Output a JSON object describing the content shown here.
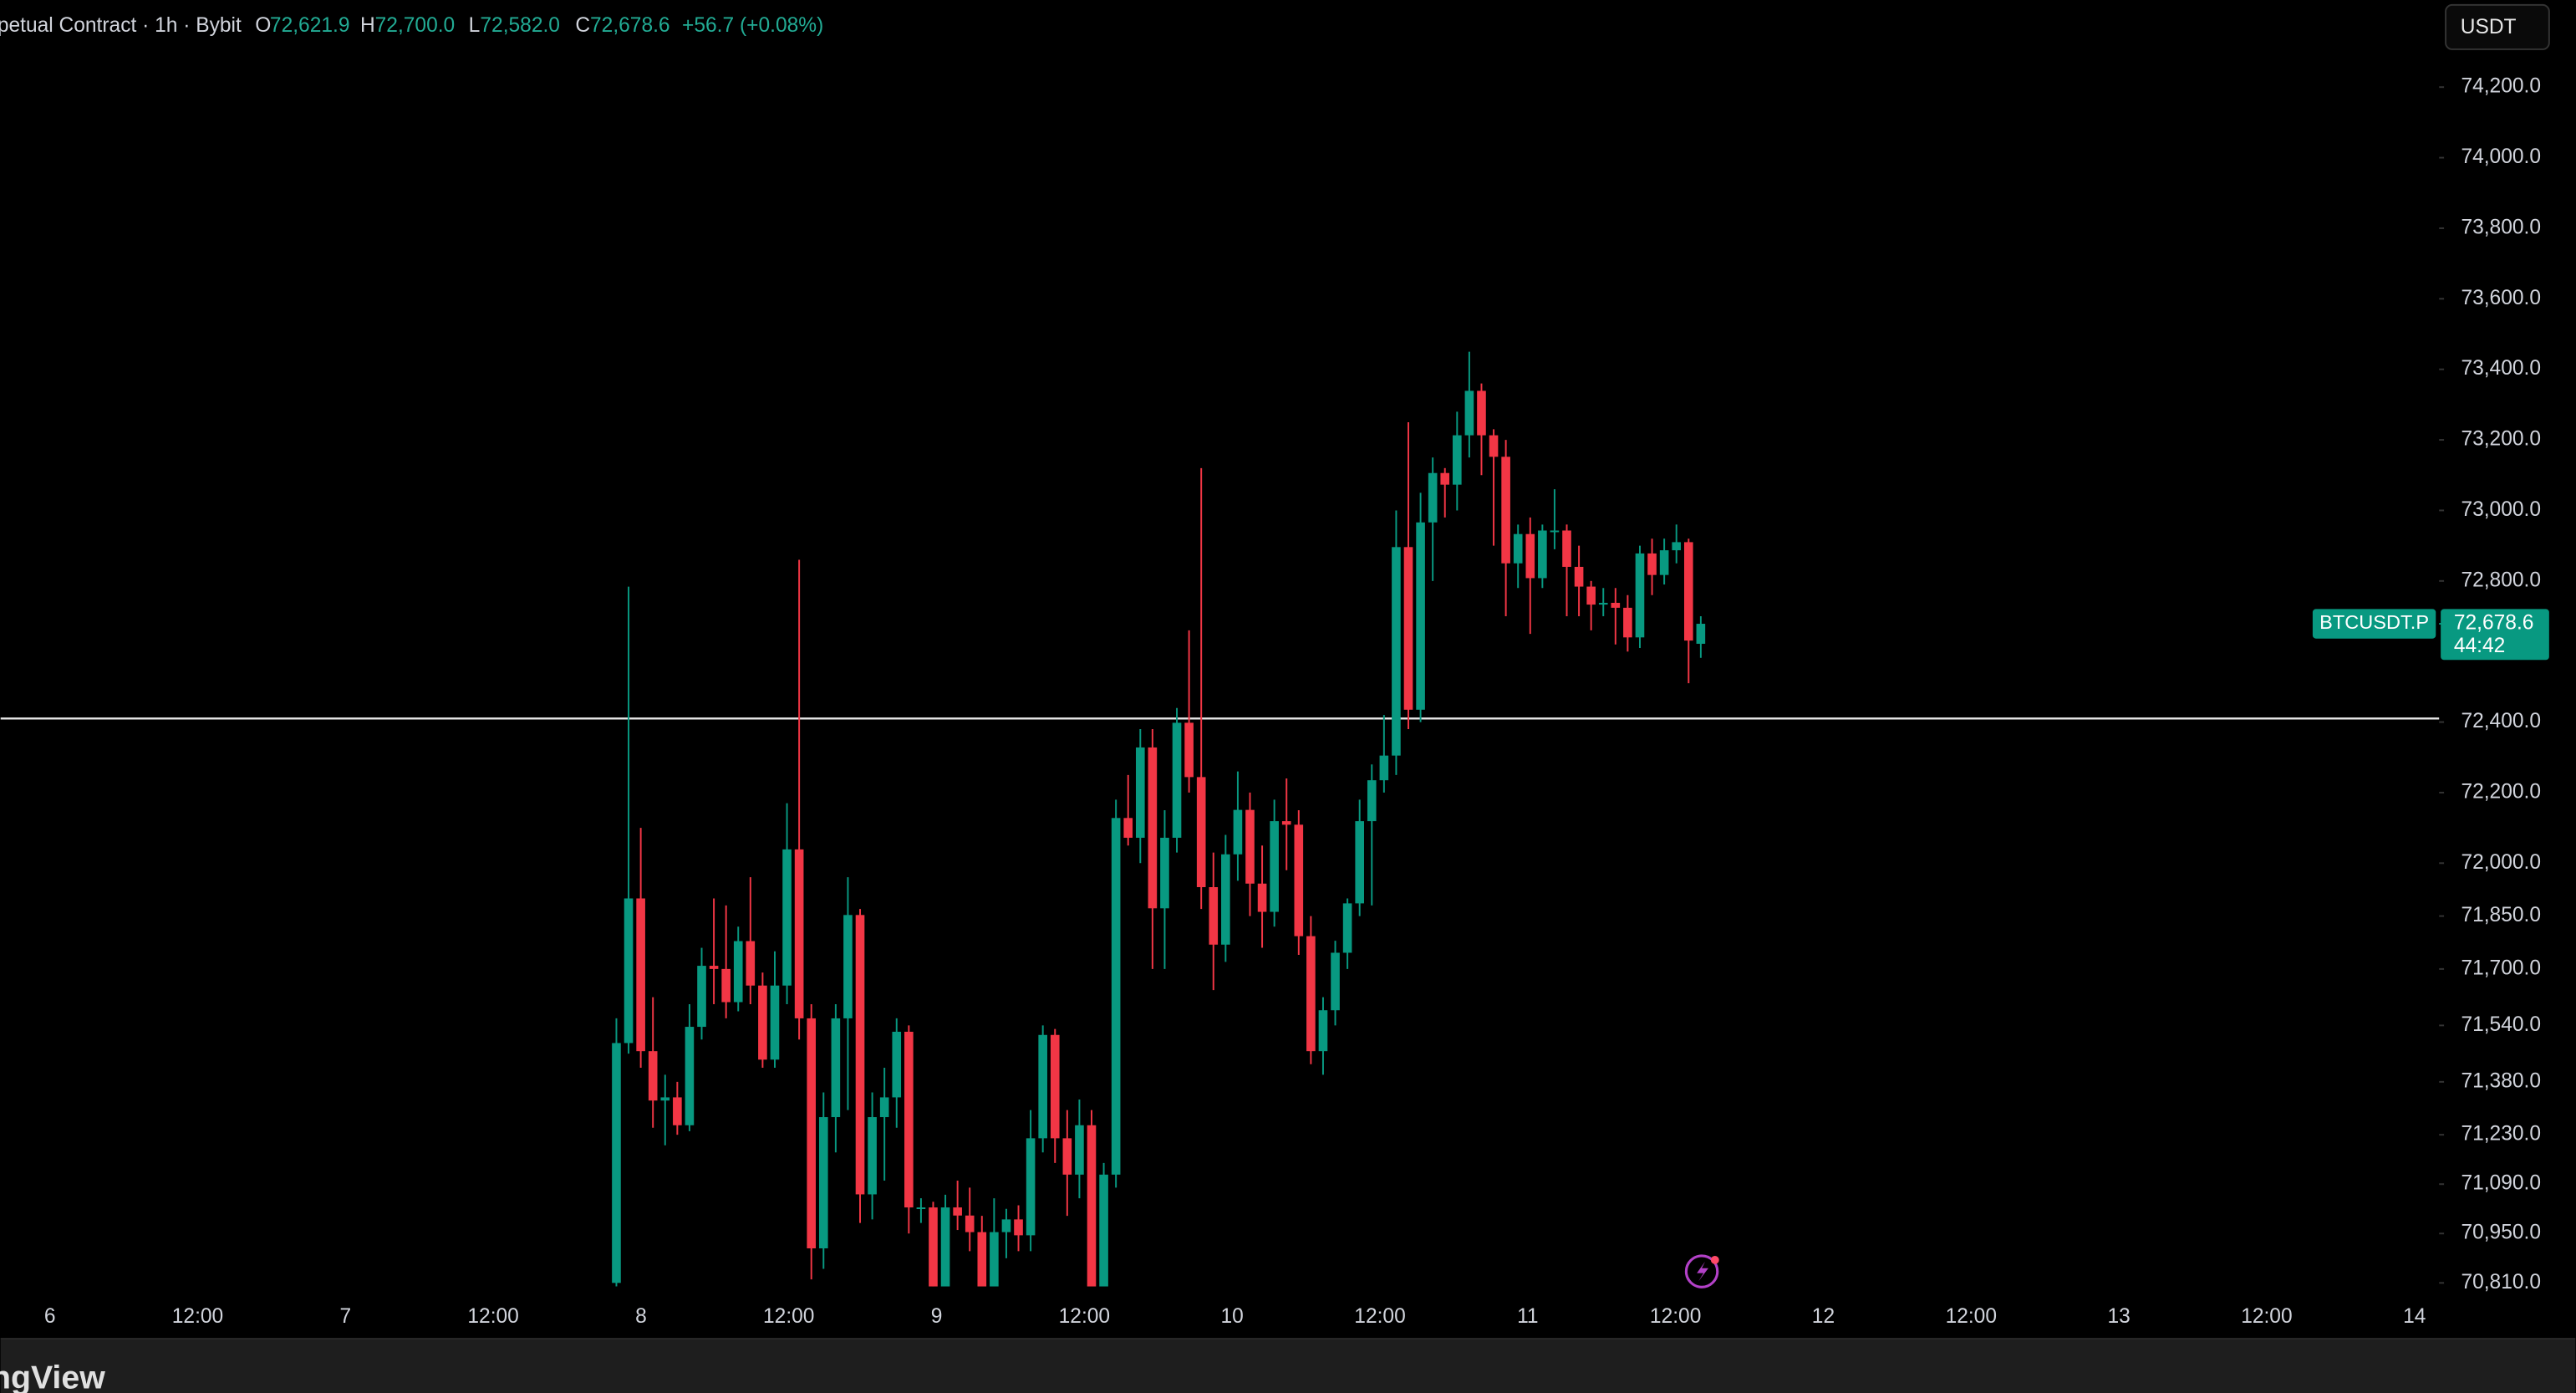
{
  "header": {
    "symbol_info": "petual Contract · 1h · Bybit",
    "ohlc": [
      {
        "key": "O",
        "value": "72,621.9"
      },
      {
        "key": "H",
        "value": "72,700.0"
      },
      {
        "key": "L",
        "value": "72,582.0"
      },
      {
        "key": "C",
        "value": "72,678.6"
      }
    ],
    "change": "+56.7 (+0.08%)"
  },
  "currency_button": "USDT",
  "price_tag": {
    "symbol": "BTCUSDT.P",
    "price": "72,678.6",
    "countdown": "44:42"
  },
  "footer_logo": "ngView",
  "chart_data": {
    "type": "candlestick",
    "up_color": "#089981",
    "down_color": "#f23645",
    "open": [
      70810,
      71490,
      71900,
      71467,
      71327,
      71336,
      71257,
      71536,
      71709,
      71700,
      71606,
      71779,
      71653,
      71443,
      71653,
      72039,
      71560,
      70908,
      71280,
      71560,
      71853,
      71061,
      71280,
      71336,
      71522,
      71024,
      71024,
      70800,
      71024,
      71001,
      70954,
      70800,
      70954,
      70990,
      70945,
      71220,
      71513,
      71220,
      71117,
      71257,
      70800,
      71117,
      72128,
      72072,
      72328,
      71872,
      72072,
      72398,
      72244,
      71932,
      71769,
      72025,
      72151,
      71942,
      71862,
      72119,
      72109,
      71793,
      71467,
      71583,
      71746,
      71886,
      72119,
      72235,
      72305,
      72896,
      72435,
      72966,
      73106,
      73073,
      73213,
      73339,
      73213,
      73152,
      72850,
      72933,
      72808,
      72943,
      72943,
      72840,
      72784,
      72733,
      72738,
      72724,
      72640,
      72878,
      72817,
      72887,
      72910,
      72621.9
    ],
    "high": [
      71560,
      72784,
      72100,
      71620,
      71400,
      71380,
      71600,
      71760,
      71900,
      71880,
      71820,
      71960,
      71690,
      71750,
      72170,
      72860,
      71600,
      71350,
      71600,
      71960,
      71870,
      71350,
      71420,
      71560,
      71540,
      71050,
      71040,
      71060,
      71100,
      71080,
      71000,
      71050,
      71020,
      71030,
      71300,
      71540,
      71530,
      71300,
      71330,
      71300,
      71150,
      72180,
      72250,
      72380,
      72380,
      72150,
      72440,
      72660,
      73120,
      72030,
      72080,
      72260,
      72200,
      72050,
      72180,
      72240,
      72150,
      71850,
      71620,
      71780,
      71900,
      72180,
      72280,
      72420,
      73000,
      73250,
      73050,
      73150,
      73120,
      73280,
      73450,
      73360,
      73230,
      73200,
      72960,
      72980,
      72960,
      73060,
      72960,
      72900,
      72800,
      72780,
      72780,
      72760,
      72900,
      72920,
      72920,
      72960,
      72920,
      72700.0
    ],
    "low": [
      70800,
      71460,
      71420,
      71250,
      71200,
      71230,
      71240,
      71500,
      71600,
      71560,
      71580,
      71600,
      71420,
      71420,
      71600,
      71500,
      70820,
      70850,
      71180,
      71300,
      70980,
      70990,
      71100,
      71250,
      70950,
      70980,
      70800,
      70800,
      70960,
      70900,
      70800,
      70800,
      70880,
      70900,
      70900,
      71180,
      71150,
      71000,
      71050,
      70800,
      70800,
      71080,
      72050,
      72000,
      71700,
      71700,
      72030,
      72200,
      71870,
      71640,
      71720,
      71950,
      71850,
      71760,
      71820,
      71980,
      71740,
      71430,
      71400,
      71540,
      71700,
      71850,
      71880,
      72200,
      72250,
      72380,
      72400,
      72800,
      72980,
      73000,
      73150,
      73100,
      72900,
      72700,
      72780,
      72650,
      72780,
      72890,
      72700,
      72700,
      72660,
      72700,
      72620,
      72600,
      72610,
      72760,
      72790,
      72850,
      72510,
      72582.0
    ],
    "close": [
      71490,
      71900,
      71467,
      71327,
      71336,
      71257,
      71536,
      71709,
      71700,
      71606,
      71779,
      71653,
      71443,
      71653,
      72039,
      71560,
      70908,
      71280,
      71560,
      71853,
      71061,
      71280,
      71336,
      71522,
      71024,
      71024,
      70800,
      71024,
      71001,
      70954,
      70800,
      70954,
      70990,
      70945,
      71220,
      71513,
      71220,
      71117,
      71257,
      70800,
      71117,
      72128,
      72072,
      72328,
      71872,
      72072,
      72398,
      72244,
      71932,
      71769,
      72025,
      72151,
      71942,
      71862,
      72119,
      72109,
      71793,
      71467,
      71583,
      71746,
      71886,
      72119,
      72235,
      72305,
      72896,
      72435,
      72966,
      73106,
      73073,
      73213,
      73339,
      73213,
      73152,
      72850,
      72933,
      72808,
      72943,
      72943,
      72840,
      72784,
      72733,
      72738,
      72724,
      72640,
      72878,
      72817,
      72887,
      72910,
      72631,
      72678.6
    ],
    "ylim": [
      70768,
      74447
    ],
    "yticks": [
      {
        "value": 74200,
        "label": "74,200.0"
      },
      {
        "value": 74000,
        "label": "74,000.0"
      },
      {
        "value": 73800,
        "label": "73,800.0"
      },
      {
        "value": 73600,
        "label": "73,600.0"
      },
      {
        "value": 73400,
        "label": "73,400.0"
      },
      {
        "value": 73200,
        "label": "73,200.0"
      },
      {
        "value": 73000,
        "label": "73,000.0"
      },
      {
        "value": 72800,
        "label": "72,800.0"
      },
      {
        "value": 72400,
        "label": "72,400.0"
      },
      {
        "value": 72200,
        "label": "72,200.0"
      },
      {
        "value": 72000,
        "label": "72,000.0"
      },
      {
        "value": 71850,
        "label": "71,850.0"
      },
      {
        "value": 71700,
        "label": "71,700.0"
      },
      {
        "value": 71540,
        "label": "71,540.0"
      },
      {
        "value": 71380,
        "label": "71,380.0"
      },
      {
        "value": 71230,
        "label": "71,230.0"
      },
      {
        "value": 71090,
        "label": "71,090.0"
      },
      {
        "value": 70950,
        "label": "70,950.0"
      },
      {
        "value": 70810,
        "label": "70,810.0"
      }
    ],
    "xticks": [
      "6",
      "12:00",
      "7",
      "12:00",
      "8",
      "12:00",
      "9",
      "12:00",
      "10",
      "12:00",
      "11",
      "12:00",
      "12",
      "12:00",
      "13",
      "12:00",
      "14"
    ],
    "horizontal_line": 72410,
    "grid": false
  }
}
